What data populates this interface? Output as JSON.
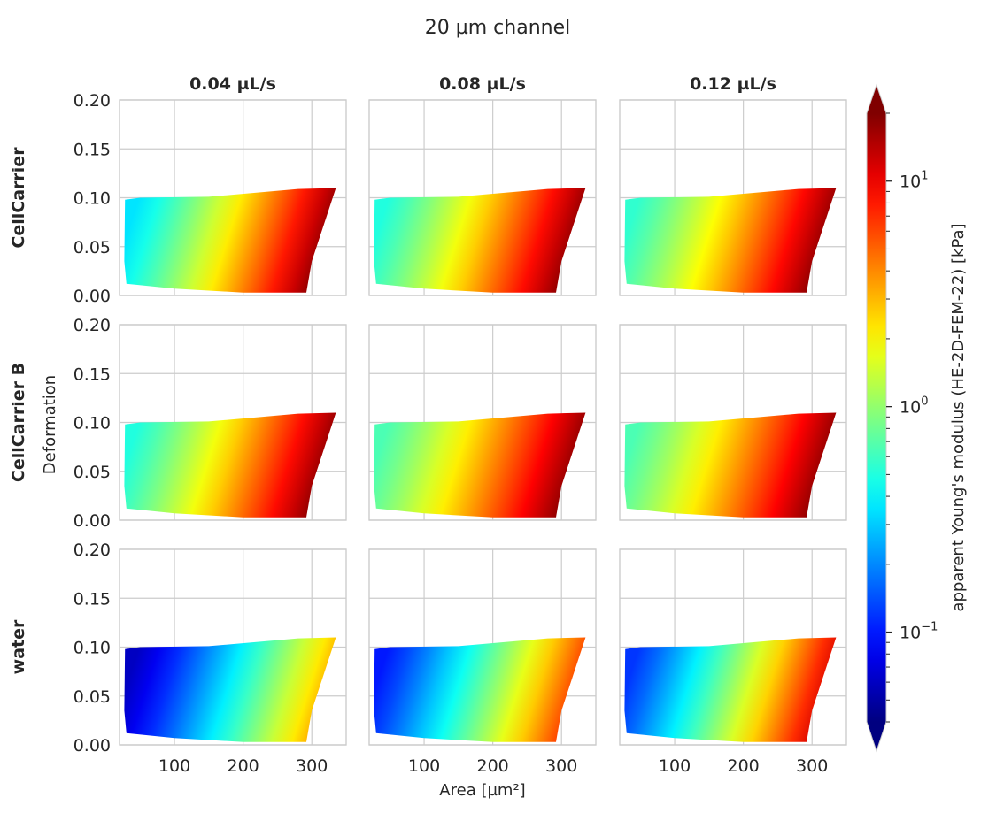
{
  "chart_data": {
    "type": "heatmap",
    "title": "20 µm channel",
    "xlabel": "Area [µm²]",
    "ylabel": "Deformation",
    "xlim": [
      20,
      350
    ],
    "ylim": [
      0.0,
      0.2
    ],
    "xticks": [
      "100",
      "200",
      "300"
    ],
    "yticks": [
      "0.00",
      "0.05",
      "0.10",
      "0.15",
      "0.20"
    ],
    "grid": true,
    "columns": [
      "0.04 µL/s",
      "0.08 µL/s",
      "0.12 µL/s"
    ],
    "rows": [
      "CellCarrier",
      "CellCarrier B",
      "water"
    ],
    "region_outline": {
      "x": [
        28,
        50,
        150,
        280,
        335,
        300,
        292,
        200,
        100,
        30,
        27
      ],
      "y": [
        0.098,
        0.1,
        0.101,
        0.109,
        0.11,
        0.035,
        0.003,
        0.003,
        0.007,
        0.012,
        0.035
      ]
    },
    "colorbar": {
      "label": "apparent Young's modulus (HE-2D-FEM-22) [kPa]",
      "scale": "log",
      "range": [
        0.04,
        20
      ],
      "tick_labels": [
        {
          "base": "10",
          "exp": "−1",
          "value": 0.1
        },
        {
          "base": "10",
          "exp": "0",
          "value": 1
        },
        {
          "base": "10",
          "exp": "1",
          "value": 10
        }
      ],
      "extend": "both",
      "colormap": "jet"
    },
    "panels": [
      {
        "row": "CellCarrier",
        "column": "0.04 µL/s",
        "emin_kPa": 0.35,
        "emax_kPa": 20
      },
      {
        "row": "CellCarrier",
        "column": "0.08 µL/s",
        "emin_kPa": 0.5,
        "emax_kPa": 20
      },
      {
        "row": "CellCarrier",
        "column": "0.12 µL/s",
        "emin_kPa": 0.55,
        "emax_kPa": 20
      },
      {
        "row": "CellCarrier B",
        "column": "0.04 µL/s",
        "emin_kPa": 0.5,
        "emax_kPa": 20
      },
      {
        "row": "CellCarrier B",
        "column": "0.08 µL/s",
        "emin_kPa": 0.65,
        "emax_kPa": 20
      },
      {
        "row": "CellCarrier B",
        "column": "0.12 µL/s",
        "emin_kPa": 0.65,
        "emax_kPa": 20
      },
      {
        "row": "water",
        "column": "0.04 µL/s",
        "emin_kPa": 0.06,
        "emax_kPa": 3.5
      },
      {
        "row": "water",
        "column": "0.08 µL/s",
        "emin_kPa": 0.1,
        "emax_kPa": 7
      },
      {
        "row": "water",
        "column": "0.12 µL/s",
        "emin_kPa": 0.12,
        "emax_kPa": 12
      }
    ]
  }
}
